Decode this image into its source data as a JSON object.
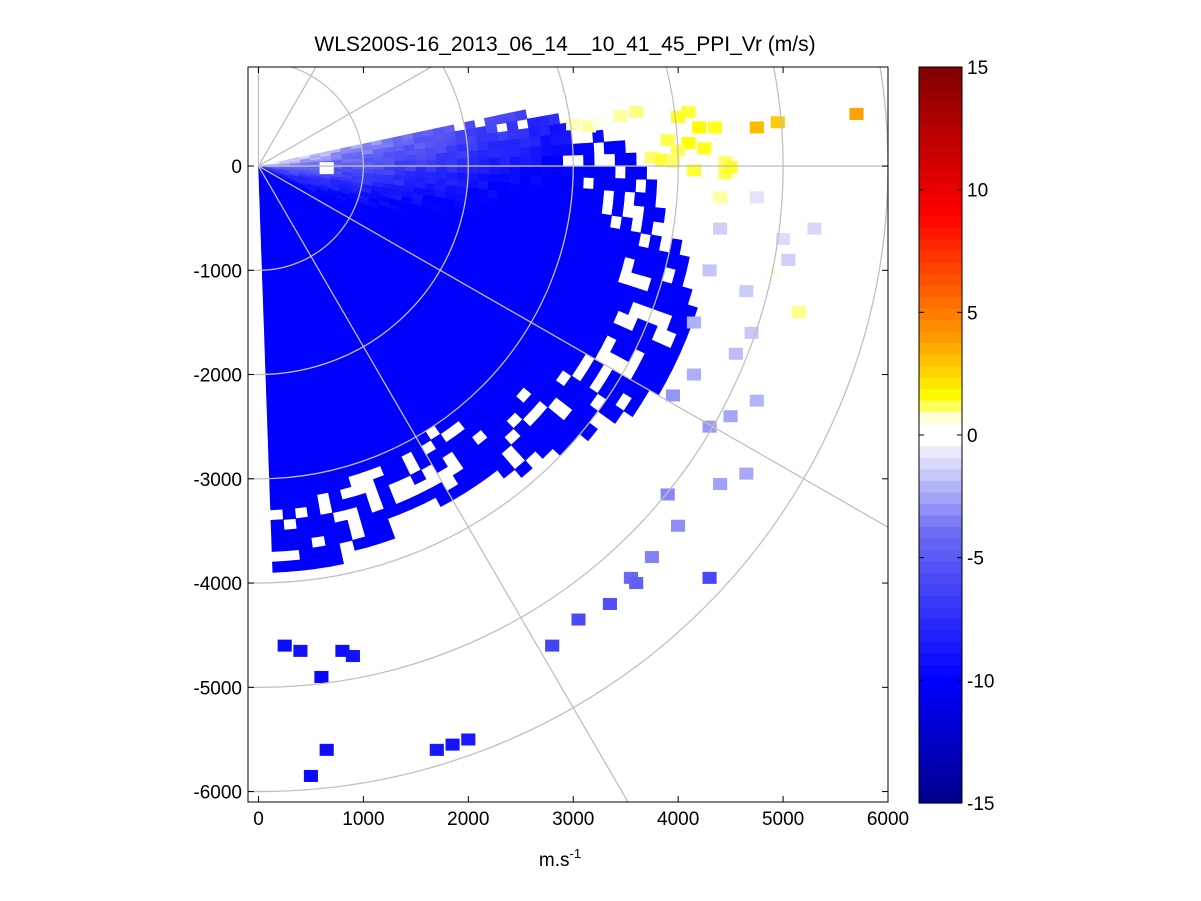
{
  "chart_data": {
    "type": "heatmap",
    "subtype": "ppi-polar-scan",
    "title": "WLS200S-16_2013_06_14__10_41_45_PPI_Vr (m/s)",
    "xlabel": {
      "base": "m.s",
      "superscript": "-1"
    },
    "ylabel": "",
    "xlim": [
      -100,
      6000
    ],
    "ylim": [
      -6100,
      950
    ],
    "xticks": [
      0,
      1000,
      2000,
      3000,
      4000,
      5000,
      6000
    ],
    "yticks": [
      0,
      -1000,
      -2000,
      -3000,
      -4000,
      -5000,
      -6000
    ],
    "xtick_labels": [
      "0",
      "1000",
      "2000",
      "3000",
      "4000",
      "5000",
      "6000"
    ],
    "ytick_labels": [
      "0",
      "-1000",
      "-2000",
      "-3000",
      "-4000",
      "-5000",
      "-6000"
    ],
    "polar_grid": {
      "ring_radii": [
        1000,
        2000,
        3000,
        4000,
        5000,
        6000
      ],
      "spoke_angles_deg": [
        90,
        60,
        30,
        0,
        -30,
        -60
      ],
      "color": "#c0c0c0"
    },
    "scan": {
      "origin": [
        0,
        0
      ],
      "azimuth_range_deg": [
        -88,
        12
      ],
      "range_gate_m": 100,
      "sector_deg": 2,
      "dense_coverage": [
        {
          "az_deg": 12,
          "range_m": 2400
        },
        {
          "az_deg": 6,
          "range_m": 3300
        },
        {
          "az_deg": 0,
          "range_m": 3600
        },
        {
          "az_deg": -10,
          "range_m": 4000
        },
        {
          "az_deg": -20,
          "range_m": 4400
        },
        {
          "az_deg": -30,
          "range_m": 4300
        },
        {
          "az_deg": -40,
          "range_m": 4000
        },
        {
          "az_deg": -50,
          "range_m": 3800
        },
        {
          "az_deg": -60,
          "range_m": 3600
        },
        {
          "az_deg": -70,
          "range_m": 3700
        },
        {
          "az_deg": -80,
          "range_m": 3900
        },
        {
          "az_deg": -88,
          "range_m": 3900
        }
      ],
      "velocity_trend": {
        "near_field_m_s": -3,
        "per_100m_m_s": -0.25,
        "per_deg_azimuth_m_s": 0.22,
        "min_m_s": -10,
        "max_m_s": 2
      },
      "seed": 17
    },
    "positive_cells": [
      {
        "x": 3000,
        "y": 400,
        "v": 0.8
      },
      {
        "x": 3150,
        "y": 380,
        "v": 0.9
      },
      {
        "x": 3250,
        "y": 420,
        "v": 0.6
      },
      {
        "x": 3450,
        "y": 480,
        "v": 0.9
      },
      {
        "x": 3600,
        "y": 520,
        "v": 1.0
      },
      {
        "x": 3500,
        "y": 330,
        "v": 0.5
      },
      {
        "x": 3650,
        "y": 320,
        "v": 0.5
      },
      {
        "x": 3900,
        "y": 250,
        "v": 1.2
      },
      {
        "x": 4000,
        "y": 470,
        "v": 1.4
      },
      {
        "x": 4100,
        "y": 520,
        "v": 1.3
      },
      {
        "x": 4200,
        "y": 370,
        "v": 1.6
      },
      {
        "x": 4350,
        "y": 370,
        "v": 1.4
      },
      {
        "x": 4100,
        "y": 220,
        "v": 1.5
      },
      {
        "x": 4250,
        "y": 170,
        "v": 1.4
      },
      {
        "x": 4000,
        "y": 150,
        "v": 1.2
      },
      {
        "x": 3750,
        "y": 80,
        "v": 1.1
      },
      {
        "x": 3850,
        "y": 60,
        "v": 1.3
      },
      {
        "x": 4450,
        "y": 40,
        "v": 1.1
      },
      {
        "x": 4450,
        "y": -70,
        "v": 1.2
      },
      {
        "x": 4500,
        "y": -10,
        "v": 1.4
      },
      {
        "x": 4150,
        "y": -40,
        "v": 1.3
      },
      {
        "x": 3950,
        "y": 40,
        "v": 1.1
      },
      {
        "x": 4750,
        "y": 370,
        "v": 3.2
      },
      {
        "x": 4950,
        "y": 420,
        "v": 2.8
      },
      {
        "x": 5700,
        "y": 500,
        "v": 3.8
      },
      {
        "x": 4400,
        "y": -300,
        "v": 0.9
      },
      {
        "x": 4900,
        "y": -1050,
        "v": 0.6
      },
      {
        "x": 5150,
        "y": -1400,
        "v": 1.0
      },
      {
        "x": 4850,
        "y": -100,
        "v": 0.4
      },
      {
        "x": 650,
        "y": -20,
        "v": 0.5
      }
    ],
    "far_negative_cells": [
      {
        "x": 650,
        "y": -5600,
        "v": -9.2
      },
      {
        "x": 500,
        "y": -5850,
        "v": -9.5
      },
      {
        "x": 1700,
        "y": -5600,
        "v": -8.7
      },
      {
        "x": 1850,
        "y": -5550,
        "v": -8.9
      },
      {
        "x": 2000,
        "y": -5500,
        "v": -8.6
      },
      {
        "x": 250,
        "y": -4600,
        "v": -9.4
      },
      {
        "x": 400,
        "y": -4650,
        "v": -9.1
      },
      {
        "x": 800,
        "y": -4650,
        "v": -9.3
      },
      {
        "x": 900,
        "y": -4700,
        "v": -9.0
      },
      {
        "x": 600,
        "y": -4900,
        "v": -9.6
      },
      {
        "x": 2800,
        "y": -4600,
        "v": -6.2
      },
      {
        "x": 3050,
        "y": -4350,
        "v": -5.8
      },
      {
        "x": 3350,
        "y": -4200,
        "v": -5.5
      },
      {
        "x": 4300,
        "y": -3950,
        "v": -6.0
      },
      {
        "x": 3550,
        "y": -3950,
        "v": -4.2
      },
      {
        "x": 3750,
        "y": -3750,
        "v": -3.4
      },
      {
        "x": 4000,
        "y": -3450,
        "v": -3.1
      },
      {
        "x": 4400,
        "y": -3050,
        "v": -2.6
      },
      {
        "x": 4650,
        "y": -2950,
        "v": -2.4
      },
      {
        "x": 3900,
        "y": -3150,
        "v": -3.3
      },
      {
        "x": 4300,
        "y": -2500,
        "v": -2.8
      },
      {
        "x": 4500,
        "y": -2400,
        "v": -2.5
      },
      {
        "x": 4750,
        "y": -2250,
        "v": -2.1
      },
      {
        "x": 3950,
        "y": -2200,
        "v": -2.9
      },
      {
        "x": 4150,
        "y": -1500,
        "v": -2.2
      },
      {
        "x": 4550,
        "y": -1800,
        "v": -1.9
      },
      {
        "x": 4700,
        "y": -1600,
        "v": -1.6
      },
      {
        "x": 5050,
        "y": -900,
        "v": -1.4
      },
      {
        "x": 5300,
        "y": -600,
        "v": -1.2
      },
      {
        "x": 5000,
        "y": -700,
        "v": -1.1
      },
      {
        "x": 4650,
        "y": -1200,
        "v": -1.5
      },
      {
        "x": 4300,
        "y": -1000,
        "v": -1.7
      },
      {
        "x": 4400,
        "y": -600,
        "v": -1.4
      },
      {
        "x": 4750,
        "y": -300,
        "v": -0.9
      },
      {
        "x": 4150,
        "y": -2000,
        "v": -2.3
      },
      {
        "x": 3600,
        "y": -4000,
        "v": -4.6
      }
    ],
    "colorbar": {
      "min": -15,
      "max": 15,
      "ticks": [
        15,
        10,
        5,
        0,
        -5,
        -10,
        -15
      ],
      "tick_labels": [
        "15",
        "10",
        "5",
        "0",
        "-5",
        "-10",
        "-15"
      ],
      "white_band": [
        -0.6,
        0.6
      ],
      "stops": [
        {
          "v": -15,
          "color": "#00008b"
        },
        {
          "v": -10,
          "color": "#0000ff"
        },
        {
          "v": -4,
          "color": "#6b6bf3"
        },
        {
          "v": -0.6,
          "color": "#eeeefc"
        },
        {
          "v": 0.6,
          "color": "#fffff0"
        },
        {
          "v": 1.5,
          "color": "#ffff00"
        },
        {
          "v": 4,
          "color": "#ff9900"
        },
        {
          "v": 9,
          "color": "#ff0000"
        },
        {
          "v": 15,
          "color": "#800000"
        }
      ]
    }
  }
}
